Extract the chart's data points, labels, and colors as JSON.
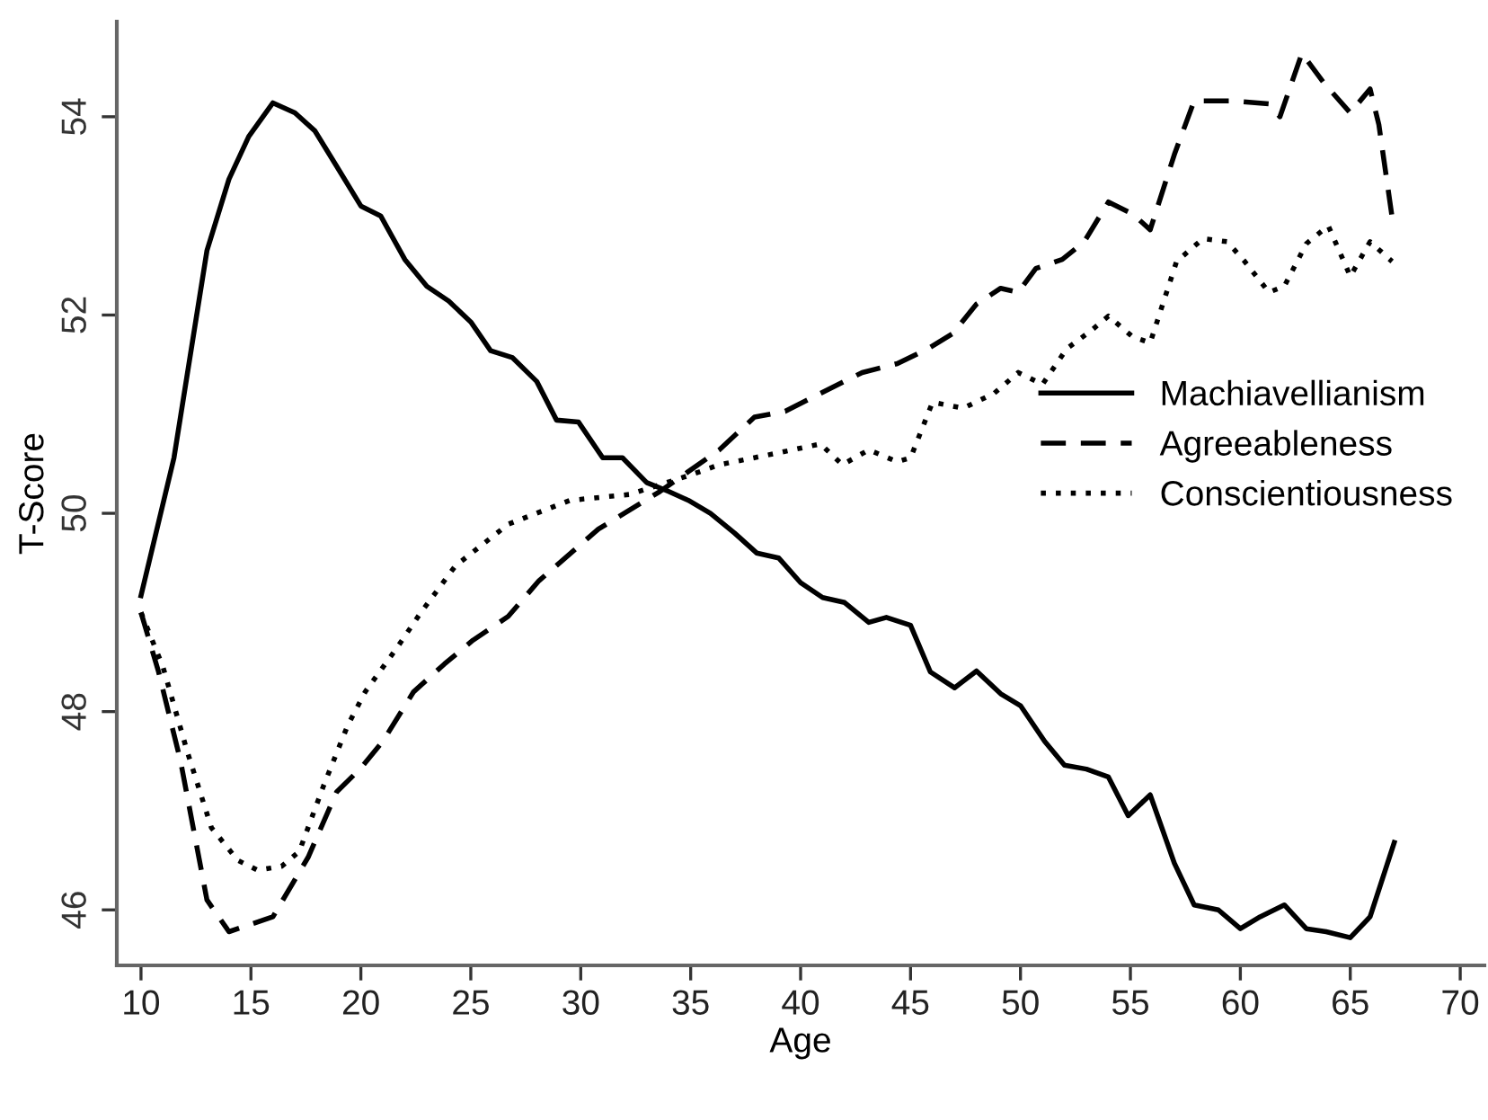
{
  "chart_data": {
    "type": "line",
    "xlabel": "Age",
    "ylabel": "T-Score",
    "xlim": [
      8.9,
      71.1
    ],
    "ylim": [
      45.44,
      54.96
    ],
    "xticks": [
      10,
      15,
      20,
      25,
      30,
      35,
      40,
      45,
      50,
      55,
      60,
      65,
      70
    ],
    "yticks": [
      46,
      48,
      50,
      52,
      54
    ],
    "grid": false,
    "legend": "center right",
    "marker": "none",
    "series": [
      {
        "name": "Machiavellianism",
        "color": "#000000",
        "line_style": "solid",
        "x": [
          10,
          11.5,
          13,
          14,
          14.9,
          16,
          17,
          17.9,
          18.9,
          20,
          20.9,
          22,
          23,
          24,
          25,
          25.9,
          26.9,
          28,
          28.9,
          29.9,
          31,
          31.9,
          33,
          34,
          34.9,
          35.9,
          37,
          38,
          39,
          40,
          41,
          42,
          43.1,
          43.9,
          45,
          45.9,
          47,
          48,
          49.1,
          50,
          51.1,
          52,
          53,
          54,
          54.9,
          55.9,
          57,
          57.9,
          59,
          60,
          60.9,
          62,
          63,
          63.9,
          65,
          65.9,
          67
        ],
        "values": [
          49.17,
          50.56,
          52.65,
          53.37,
          53.8,
          54.14,
          54.04,
          53.86,
          53.5,
          53.1,
          53.0,
          52.56,
          52.29,
          52.14,
          51.93,
          51.64,
          51.57,
          51.33,
          50.94,
          50.92,
          50.56,
          50.56,
          50.31,
          50.22,
          50.13,
          50.0,
          49.8,
          49.6,
          49.55,
          49.3,
          49.15,
          49.1,
          48.9,
          48.95,
          48.87,
          48.4,
          48.24,
          48.41,
          48.18,
          48.06,
          47.7,
          47.46,
          47.42,
          47.34,
          46.95,
          47.16,
          46.47,
          46.05,
          46.0,
          45.81,
          45.93,
          46.05,
          45.81,
          45.78,
          45.72,
          45.93,
          46.68
        ]
      },
      {
        "name": "Agreeableness",
        "color": "#000000",
        "line_style": "dashed",
        "x": [
          10,
          10.8,
          11.8,
          13,
          14,
          16,
          17.6,
          18.9,
          20,
          21,
          22.4,
          23.8,
          25.1,
          26.7,
          28.1,
          30.8,
          33.6,
          36.3,
          37.9,
          39.3,
          40.9,
          42.8,
          44.4,
          45.8,
          46.9,
          48,
          49.1,
          49.9,
          50.7,
          51.9,
          52.9,
          54,
          55.1,
          55.9,
          57,
          57.9,
          59.7,
          61.3,
          61.8,
          62.8,
          63.8,
          65,
          65.9,
          66.3,
          66.9
        ],
        "values": [
          49.0,
          48.4,
          47.5,
          46.1,
          45.78,
          45.93,
          46.53,
          47.19,
          47.43,
          47.7,
          48.2,
          48.48,
          48.72,
          48.96,
          49.32,
          49.84,
          50.22,
          50.64,
          50.97,
          51.03,
          51.21,
          51.42,
          51.51,
          51.66,
          51.81,
          52.11,
          52.27,
          52.23,
          52.47,
          52.56,
          52.74,
          53.14,
          53.02,
          52.86,
          53.62,
          54.16,
          54.16,
          54.13,
          54.0,
          54.64,
          54.34,
          54.04,
          54.28,
          53.92,
          52.99
        ]
      },
      {
        "name": "Conscientiousness",
        "color": "#000000",
        "line_style": "dotted",
        "x": [
          10,
          11,
          12.1,
          13.2,
          14.4,
          15.3,
          16.4,
          17.2,
          18.3,
          19.4,
          20.2,
          21.6,
          22.7,
          24.3,
          26.7,
          29.5,
          32.2,
          34.9,
          36.3,
          39,
          40.9,
          41.9,
          43.1,
          44.4,
          45,
          46,
          47.4,
          48.8,
          49.9,
          51,
          52.1,
          53.2,
          54,
          55.1,
          55.9,
          57.1,
          58.3,
          59.4,
          60.2,
          61.3,
          62,
          63,
          64,
          65,
          65.9,
          66.9
        ],
        "values": [
          49.0,
          48.45,
          47.6,
          46.83,
          46.5,
          46.4,
          46.44,
          46.59,
          47.25,
          47.86,
          48.2,
          48.63,
          48.99,
          49.47,
          49.89,
          50.13,
          50.19,
          50.38,
          50.49,
          50.61,
          50.7,
          50.49,
          50.64,
          50.52,
          50.56,
          51.12,
          51.06,
          51.21,
          51.42,
          51.3,
          51.66,
          51.84,
          51.99,
          51.78,
          51.72,
          52.54,
          52.77,
          52.74,
          52.54,
          52.23,
          52.29,
          52.72,
          52.9,
          52.39,
          52.74,
          52.54
        ]
      }
    ]
  }
}
